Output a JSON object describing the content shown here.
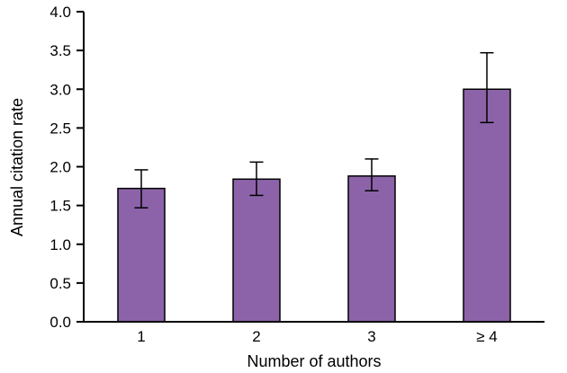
{
  "chart_data": {
    "type": "bar",
    "title": "",
    "xlabel": "Number of authors",
    "ylabel": "Annual citation rate",
    "categories": [
      "1",
      "2",
      "3",
      "≥ 4"
    ],
    "series": [
      {
        "name": "Annual citation rate",
        "values": [
          1.72,
          1.84,
          1.88,
          3.0
        ],
        "error_low": [
          1.47,
          1.63,
          1.69,
          2.57
        ],
        "error_high": [
          1.96,
          2.06,
          2.1,
          3.47
        ]
      }
    ],
    "ylim": [
      0,
      4
    ],
    "ytick_step": 0.5,
    "ytick_labels": [
      "0.0",
      "0.5",
      "1.0",
      "1.5",
      "2.0",
      "2.5",
      "3.0",
      "3.5",
      "4.0"
    ],
    "grid": false,
    "legend": null,
    "colors": {
      "bar_fill": "#8C63A9",
      "bar_stroke": "#000000",
      "axis": "#000000",
      "text": "#000000",
      "background": "#FFFFFF"
    }
  }
}
